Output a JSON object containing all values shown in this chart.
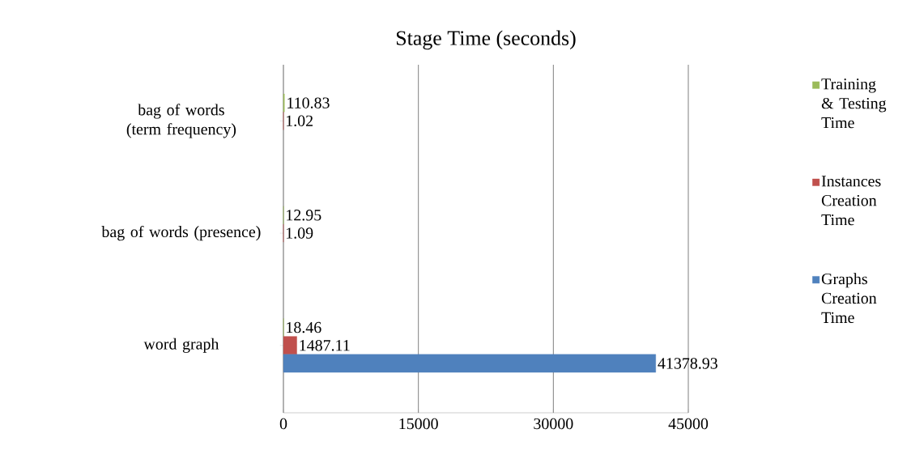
{
  "chart_data": {
    "type": "bar",
    "orientation": "horizontal",
    "title": "Stage Time (seconds)",
    "categories": [
      "bag of words (term frequency)",
      "bag of words (presence)",
      "word graph"
    ],
    "series": [
      {
        "name": "Training & Testing Time",
        "color": "#9bbb59",
        "values": [
          110.83,
          12.95,
          18.46
        ]
      },
      {
        "name": "Instances Creation Time",
        "color": "#c0504d",
        "values": [
          1.02,
          1.09,
          1487.11
        ]
      },
      {
        "name": "Graphs Creation Time",
        "color": "#4f81bd",
        "values": [
          null,
          null,
          41378.93
        ]
      }
    ],
    "xlim": [
      0,
      45000
    ],
    "xticks": [
      0,
      15000,
      30000,
      45000
    ],
    "grid": "x",
    "legend": "right",
    "data_labels": true
  }
}
